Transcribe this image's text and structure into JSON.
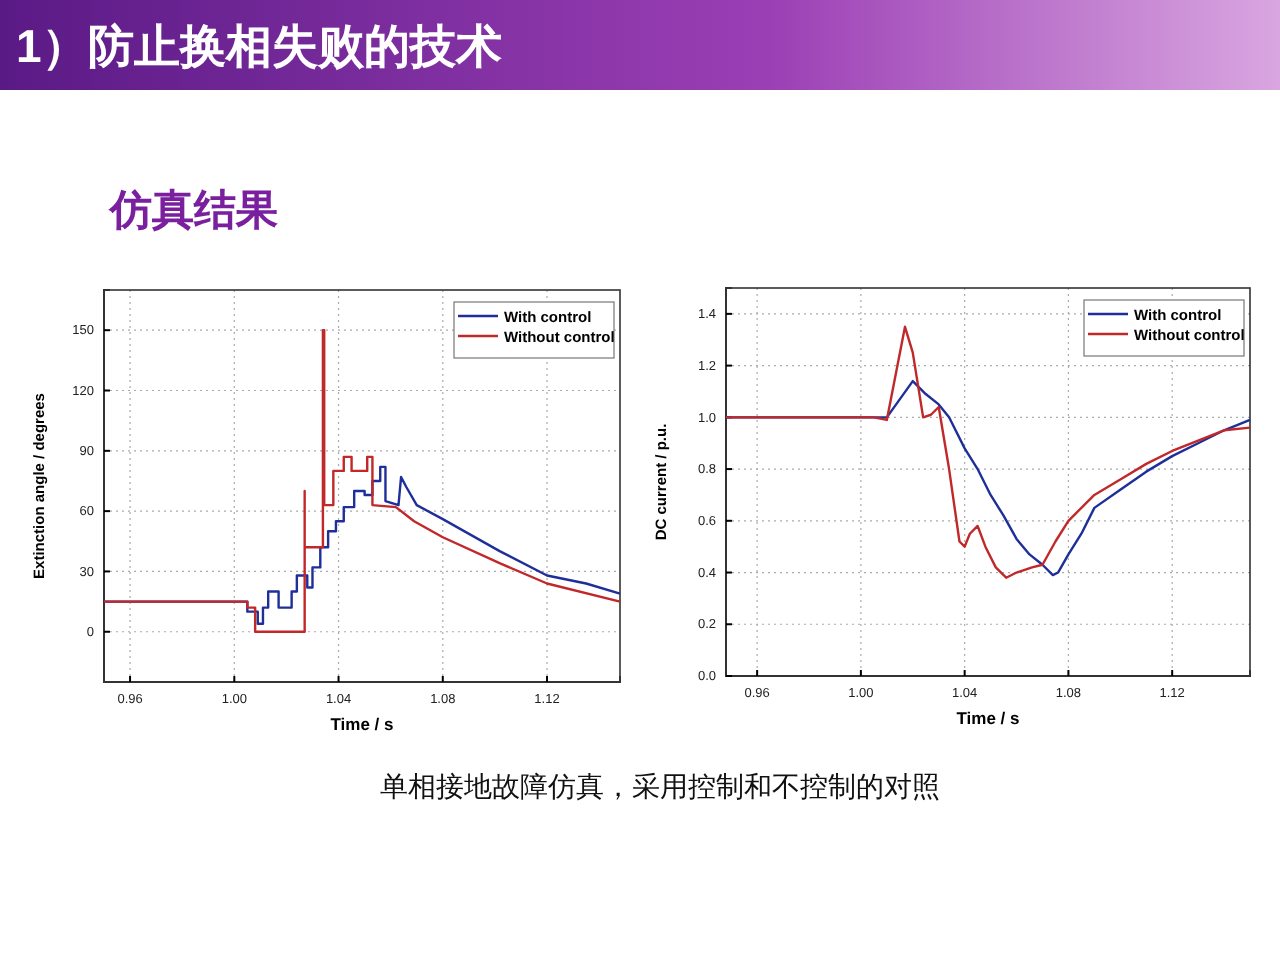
{
  "chart_data": [
    {
      "type": "line",
      "title": "1）防止换相失败的技术",
      "subtitle": "仿真结果",
      "xlabel": "Time / s",
      "ylabel": "Extinction angle / degrees",
      "xlim": [
        0.95,
        1.148
      ],
      "xticks": [
        {
          "value": 0.96,
          "label": "0.96"
        },
        {
          "value": 1.0,
          "label": "1.00"
        },
        {
          "value": 1.04,
          "label": "1.04"
        },
        {
          "value": 1.08,
          "label": "1.08"
        },
        {
          "value": 1.12,
          "label": "1.12"
        }
      ],
      "ylim": [
        -25,
        170
      ],
      "yticks": [
        0,
        30,
        60,
        90,
        120,
        150
      ],
      "grid": true,
      "legend": "top right",
      "series": [
        {
          "name": "With control",
          "color": "#1f2f9a",
          "x": [
            0.95,
            1.002,
            1.005,
            1.005,
            1.009,
            1.009,
            1.011,
            1.011,
            1.013,
            1.013,
            1.017,
            1.017,
            1.022,
            1.022,
            1.024,
            1.024,
            1.028,
            1.028,
            1.03,
            1.03,
            1.033,
            1.033,
            1.036,
            1.036,
            1.039,
            1.039,
            1.042,
            1.042,
            1.046,
            1.046,
            1.05,
            1.05,
            1.053,
            1.053,
            1.056,
            1.056,
            1.058,
            1.058,
            1.063,
            1.064,
            1.066,
            1.07,
            1.08,
            1.102,
            1.12,
            1.135,
            1.148
          ],
          "values": [
            15,
            15,
            15,
            10,
            10,
            4,
            4,
            12,
            12,
            20,
            20,
            12,
            12,
            20,
            20,
            28,
            28,
            22,
            22,
            32,
            32,
            42,
            42,
            50,
            50,
            55,
            55,
            62,
            62,
            70,
            70,
            68,
            68,
            75,
            75,
            82,
            82,
            65,
            63,
            77,
            72,
            63,
            56,
            40,
            28,
            24,
            19
          ]
        },
        {
          "name": "Without control",
          "color": "#c0282a",
          "x": [
            0.95,
            1.002,
            1.005,
            1.005,
            1.008,
            1.008,
            1.027,
            1.027,
            1.027,
            1.0272,
            1.034,
            1.034,
            1.0345,
            1.0345,
            1.038,
            1.038,
            1.042,
            1.042,
            1.045,
            1.045,
            1.051,
            1.051,
            1.052,
            1.053,
            1.053,
            1.062,
            1.069,
            1.08,
            1.102,
            1.12,
            1.148
          ],
          "values": [
            15,
            15,
            15,
            12,
            12,
            0,
            0,
            70,
            42,
            42,
            42,
            150,
            150,
            63,
            63,
            80,
            80,
            87,
            87,
            80,
            80,
            87,
            87,
            87,
            63,
            62,
            55,
            47,
            34,
            24,
            15
          ]
        }
      ]
    },
    {
      "type": "line",
      "xlabel": "Time / s",
      "ylabel": "DC current / p.u.",
      "annotations": [
        "单相接地故障仿真，采用控制和不控制的对照"
      ],
      "xlim": [
        0.948,
        1.15
      ],
      "xticks": [
        {
          "value": 0.96,
          "label": "0.96"
        },
        {
          "value": 1.0,
          "label": "1.00"
        },
        {
          "value": 1.04,
          "label": "1.04"
        },
        {
          "value": 1.08,
          "label": "1.08"
        },
        {
          "value": 1.12,
          "label": "1.12"
        }
      ],
      "ylim": [
        0,
        1.5
      ],
      "yticks": [
        {
          "value": 0,
          "label": "0.0"
        },
        {
          "value": 0.2,
          "label": "0.2"
        },
        {
          "value": 0.4,
          "label": "0.4"
        },
        {
          "value": 0.6,
          "label": "0.6"
        },
        {
          "value": 0.8,
          "label": "0.8"
        },
        {
          "value": 1.0,
          "label": "1.0"
        },
        {
          "value": 1.2,
          "label": "1.2"
        },
        {
          "value": 1.4,
          "label": "1.4"
        }
      ],
      "grid": true,
      "legend": "top right",
      "series": [
        {
          "name": "With control",
          "color": "#1f2f9a",
          "x": [
            0.948,
            1.005,
            1.01,
            1.02,
            1.025,
            1.03,
            1.034,
            1.04,
            1.045,
            1.05,
            1.055,
            1.06,
            1.065,
            1.07,
            1.074,
            1.076,
            1.08,
            1.085,
            1.09,
            1.1,
            1.11,
            1.12,
            1.13,
            1.14,
            1.15
          ],
          "values": [
            1.0,
            1.0,
            1.0,
            1.14,
            1.09,
            1.05,
            1.0,
            0.88,
            0.8,
            0.7,
            0.62,
            0.53,
            0.47,
            0.43,
            0.39,
            0.4,
            0.47,
            0.55,
            0.65,
            0.72,
            0.79,
            0.85,
            0.9,
            0.95,
            0.99
          ]
        },
        {
          "name": "Without control",
          "color": "#c0282a",
          "x": [
            0.948,
            1.005,
            1.01,
            1.017,
            1.02,
            1.024,
            1.027,
            1.03,
            1.034,
            1.038,
            1.04,
            1.042,
            1.045,
            1.048,
            1.052,
            1.056,
            1.06,
            1.066,
            1.07,
            1.075,
            1.08,
            1.09,
            1.1,
            1.11,
            1.12,
            1.13,
            1.14,
            1.15
          ],
          "values": [
            1.0,
            1.0,
            0.99,
            1.35,
            1.25,
            1.0,
            1.01,
            1.04,
            0.8,
            0.52,
            0.5,
            0.55,
            0.58,
            0.5,
            0.42,
            0.38,
            0.4,
            0.42,
            0.43,
            0.52,
            0.6,
            0.7,
            0.76,
            0.82,
            0.87,
            0.91,
            0.95,
            0.96
          ]
        }
      ]
    }
  ]
}
